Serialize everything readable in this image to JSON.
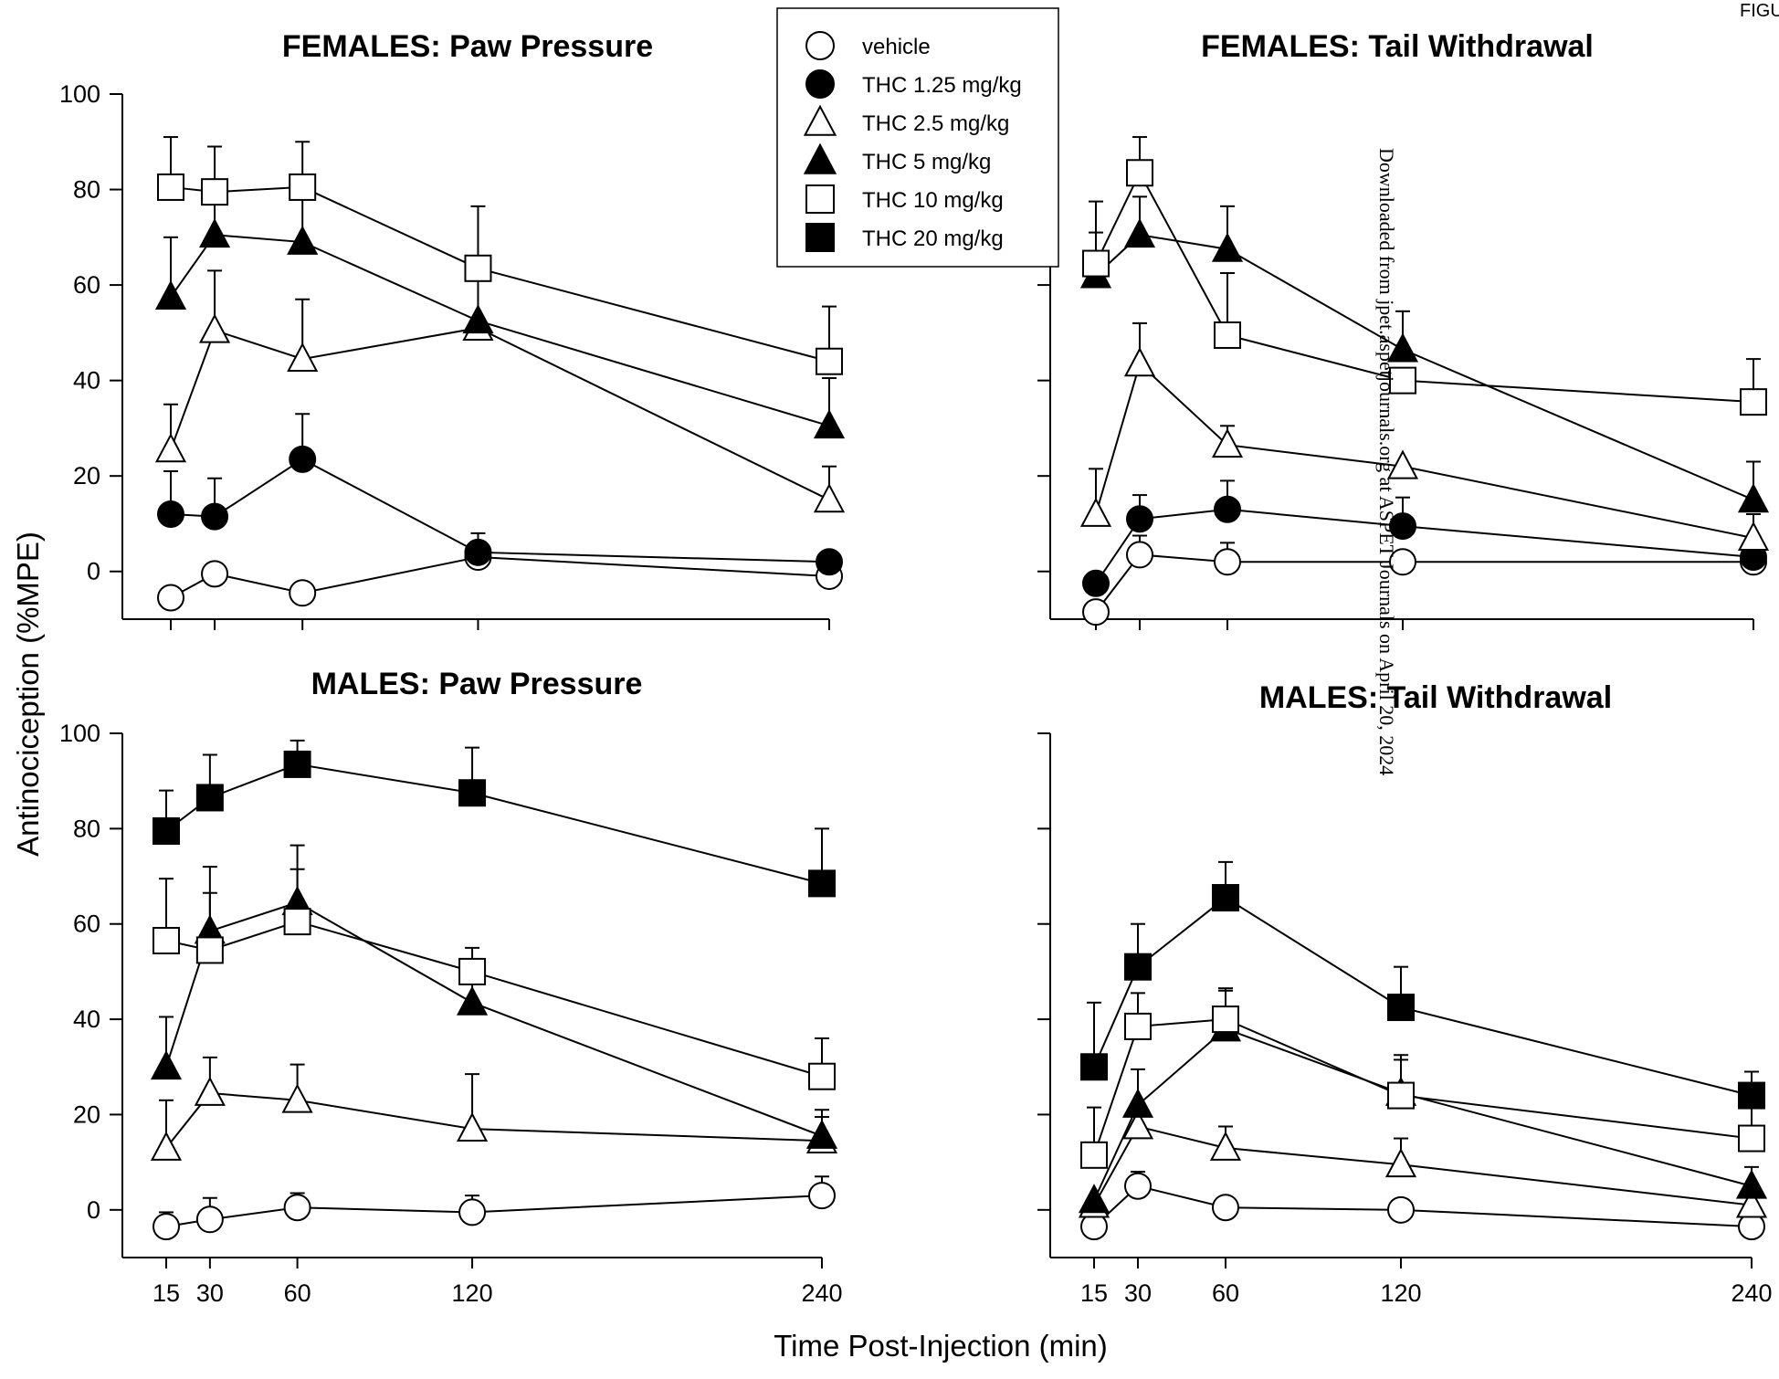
{
  "corner_label": "FIGU",
  "watermark": "Downloaded from jpet.aspetjournals.org at ASPET Journals on April 20, 2024",
  "ylabel": "Antinociception (%MPE)",
  "xlabel": "Time Post-Injection (min)",
  "legend": [
    {
      "label": "vehicle",
      "marker": "circle",
      "fill": "#ffffff"
    },
    {
      "label": "THC 1.25 mg/kg",
      "marker": "circle",
      "fill": "#000000"
    },
    {
      "label": "THC 2.5 mg/kg",
      "marker": "triangle",
      "fill": "#ffffff"
    },
    {
      "label": "THC 5 mg/kg",
      "marker": "triangle",
      "fill": "#000000"
    },
    {
      "label": "THC 10 mg/kg",
      "marker": "square",
      "fill": "#ffffff"
    },
    {
      "label": "THC 20 mg/kg",
      "marker": "square",
      "fill": "#000000"
    }
  ],
  "chart_data": [
    {
      "type": "line",
      "title": "FEMALES:  Paw Pressure",
      "x_ticks": [
        15,
        30,
        60,
        120,
        240
      ],
      "y_ticks": [
        0,
        20,
        40,
        60,
        80,
        100
      ],
      "xlim": [
        10,
        240
      ],
      "ylim": [
        -10,
        100
      ],
      "x": [
        15,
        30,
        60,
        120,
        240
      ],
      "series": [
        {
          "name": "vehicle",
          "values": [
            -5.5,
            -0.5,
            -4.5,
            3,
            -1
          ],
          "err": [
            0,
            0,
            2,
            2,
            2
          ]
        },
        {
          "name": "THC 1.25 mg/kg",
          "values": [
            12,
            11.5,
            23.5,
            4,
            2
          ],
          "err": [
            9,
            8,
            9.5,
            4,
            0
          ]
        },
        {
          "name": "THC 2.5 mg/kg",
          "values": [
            25.5,
            50.5,
            44.5,
            51,
            15
          ],
          "err": [
            9.5,
            12.5,
            12.5,
            13,
            7
          ]
        },
        {
          "name": "THC 5 mg/kg",
          "values": [
            57.5,
            70.5,
            69,
            52.5,
            30.5
          ],
          "err": [
            12.5,
            11,
            10,
            0,
            10
          ]
        },
        {
          "name": "THC 10 mg/kg",
          "values": [
            80.5,
            79.5,
            80.5,
            63.5,
            44
          ],
          "err": [
            10.5,
            9.5,
            9.5,
            13,
            11.5
          ]
        }
      ]
    },
    {
      "type": "line",
      "title": "FEMALES:  Tail Withdrawal",
      "x_ticks": [
        15,
        30,
        60,
        120,
        240
      ],
      "y_ticks": [
        0,
        20,
        40,
        60,
        80,
        100
      ],
      "xlim": [
        10,
        240
      ],
      "ylim": [
        -10,
        100
      ],
      "x": [
        15,
        30,
        60,
        120,
        240
      ],
      "series": [
        {
          "name": "vehicle",
          "values": [
            -8.5,
            3.5,
            2,
            2,
            2
          ],
          "err": [
            0,
            4,
            4,
            0,
            3.5
          ]
        },
        {
          "name": "THC 1.25 mg/kg",
          "values": [
            -2.5,
            11,
            13,
            9.5,
            3
          ],
          "err": [
            0,
            5,
            6,
            6,
            0
          ]
        },
        {
          "name": "THC 2.5 mg/kg",
          "values": [
            12,
            43.5,
            26.5,
            22,
            7
          ],
          "err": [
            9.5,
            8.5,
            4,
            0,
            5
          ]
        },
        {
          "name": "THC 5 mg/kg",
          "values": [
            62,
            70.5,
            67.5,
            46.5,
            15
          ],
          "err": [
            9,
            8,
            9,
            8,
            8
          ]
        },
        {
          "name": "THC 10 mg/kg",
          "values": [
            64.5,
            83.5,
            49.5,
            40,
            35.5
          ],
          "err": [
            13,
            7.5,
            13,
            0,
            9
          ]
        }
      ]
    },
    {
      "type": "line",
      "title": "MALES:  Paw Pressure",
      "x_ticks": [
        15,
        30,
        60,
        120,
        240
      ],
      "y_ticks": [
        0,
        20,
        40,
        60,
        80,
        100
      ],
      "xlim": [
        10,
        240
      ],
      "ylim": [
        -10,
        100
      ],
      "x": [
        15,
        30,
        60,
        120,
        240
      ],
      "series": [
        {
          "name": "vehicle",
          "values": [
            -3.5,
            -2,
            0.5,
            -0.5,
            3
          ],
          "err": [
            3,
            4.5,
            3,
            3.5,
            4
          ]
        },
        {
          "name": "THC 2.5 mg/kg",
          "values": [
            13,
            24.5,
            23,
            17,
            14.5
          ],
          "err": [
            10,
            7.5,
            7.5,
            11.5,
            6.5
          ]
        },
        {
          "name": "THC 5 mg/kg",
          "values": [
            30,
            58.5,
            64.5,
            43.5,
            15.5
          ],
          "err": [
            10.5,
            13.5,
            12,
            5,
            4
          ]
        },
        {
          "name": "THC 10 mg/kg",
          "values": [
            56.5,
            54.5,
            60.5,
            50,
            28
          ],
          "err": [
            13,
            12,
            11,
            5,
            8
          ]
        },
        {
          "name": "THC 20 mg/kg",
          "values": [
            79.5,
            86.5,
            93.5,
            87.5,
            68.5
          ],
          "err": [
            8.5,
            9,
            5,
            9.5,
            11.5
          ]
        }
      ]
    },
    {
      "type": "line",
      "title": "MALES:  Tail Withdrawal",
      "x_ticks": [
        15,
        30,
        60,
        120,
        240
      ],
      "y_ticks": [
        0,
        20,
        40,
        60,
        80,
        100
      ],
      "xlim": [
        10,
        240
      ],
      "ylim": [
        -10,
        100
      ],
      "x": [
        15,
        30,
        60,
        120,
        240
      ],
      "series": [
        {
          "name": "vehicle",
          "values": [
            -3.5,
            5,
            0.5,
            0,
            -3.5
          ],
          "err": [
            0,
            3,
            0,
            0,
            0
          ]
        },
        {
          "name": "THC 2.5 mg/kg",
          "values": [
            1,
            17.5,
            13,
            9.5,
            1
          ],
          "err": [
            0,
            4,
            4.5,
            5.5,
            0
          ]
        },
        {
          "name": "THC 5 mg/kg",
          "values": [
            2,
            22,
            38,
            24.5,
            5
          ],
          "err": [
            0,
            7.5,
            8,
            7,
            4
          ]
        },
        {
          "name": "THC 10 mg/kg",
          "values": [
            11.5,
            38.5,
            40,
            24,
            15
          ],
          "err": [
            10,
            7,
            6.5,
            8.5,
            7
          ]
        },
        {
          "name": "THC 20 mg/kg",
          "values": [
            30,
            51,
            65.5,
            42.5,
            24
          ],
          "err": [
            13.5,
            9,
            7.5,
            8.5,
            5
          ]
        }
      ]
    }
  ]
}
